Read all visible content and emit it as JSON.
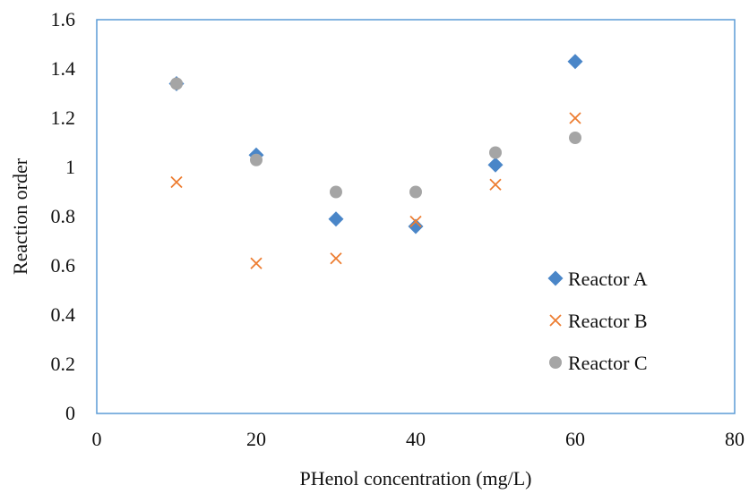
{
  "chart_data": {
    "type": "scatter",
    "title": "",
    "xlabel": "PHenol concentration (mg/L)",
    "ylabel": "Reaction order",
    "xlim": [
      0,
      80
    ],
    "ylim": [
      0,
      1.6
    ],
    "xticks": [
      "0",
      "20",
      "40",
      "60",
      "80"
    ],
    "yticks": [
      "0",
      "0.2",
      "0.4",
      "0.6",
      "0.8",
      "1",
      "1.2",
      "1.4",
      "1.6"
    ],
    "grid": false,
    "legend_position": "bottom-right",
    "series": [
      {
        "name": "Reactor A",
        "marker": "diamond",
        "color": "#4a86c8",
        "x": [
          10,
          20,
          30,
          40,
          50,
          60
        ],
        "y": [
          1.34,
          1.05,
          0.79,
          0.76,
          1.01,
          1.43
        ]
      },
      {
        "name": "Reactor B",
        "marker": "x",
        "color": "#ed7d31",
        "x": [
          10,
          20,
          30,
          40,
          50,
          60
        ],
        "y": [
          0.94,
          0.61,
          0.63,
          0.78,
          0.93,
          1.2
        ]
      },
      {
        "name": "Reactor C",
        "marker": "circle",
        "color": "#a5a5a5",
        "x": [
          10,
          20,
          30,
          40,
          50,
          60
        ],
        "y": [
          1.34,
          1.03,
          0.9,
          0.9,
          1.06,
          1.12
        ]
      }
    ]
  }
}
